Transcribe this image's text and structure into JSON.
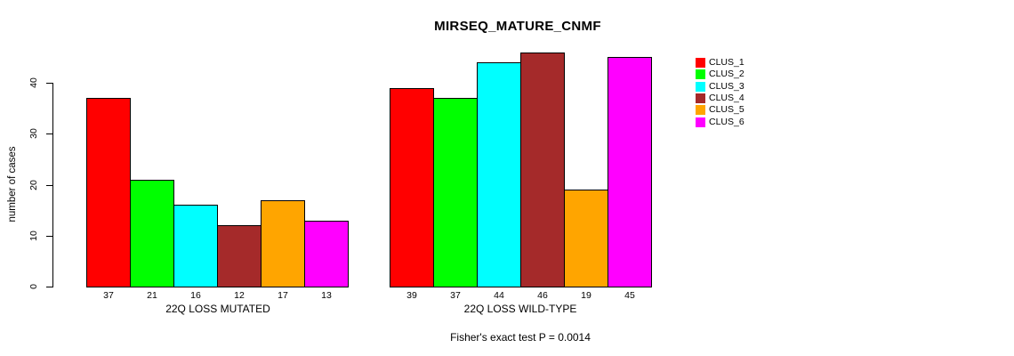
{
  "chart_data": {
    "type": "bar",
    "title": "MIRSEQ_MATURE_CNMF",
    "ylabel": "number of cases",
    "xlabel": "",
    "caption": "Fisher's exact test P = 0.0014",
    "yticks": [
      0,
      10,
      20,
      30,
      40
    ],
    "ylim": [
      0,
      46
    ],
    "grid": false,
    "legend_position": "top-right-outside",
    "series_labels": [
      "CLUS_1",
      "CLUS_2",
      "CLUS_3",
      "CLUS_4",
      "CLUS_5",
      "CLUS_6"
    ],
    "series_colors": [
      "#FF0000",
      "#00FF00",
      "#00FFFF",
      "#A52A2A",
      "#FFA500",
      "#FF00FF"
    ],
    "groups": [
      {
        "label": "22Q LOSS MUTATED",
        "values": [
          37,
          21,
          16,
          12,
          17,
          13
        ]
      },
      {
        "label": "22Q LOSS WILD-TYPE",
        "values": [
          39,
          37,
          44,
          46,
          19,
          45
        ]
      }
    ],
    "colors": {
      "background": "#FFFFFF",
      "text": "#000000",
      "axis": "#000000",
      "bar_border": "#000000"
    }
  }
}
